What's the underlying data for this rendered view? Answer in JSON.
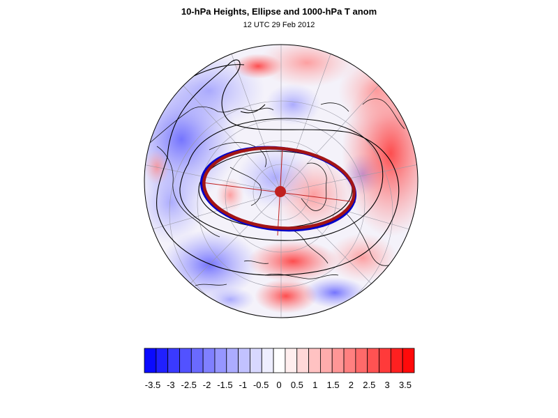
{
  "figure": {
    "title": "10-hPa Heights, Ellipse and 1000-hPa T anom",
    "subtitle": "12 UTC 29 Feb 2012"
  },
  "map": {
    "projection": "orthographic-north-polar",
    "shading_field": "1000-hPa temperature anomaly",
    "contour_field": "10-hPa geopotential height",
    "ellipse_colors": {
      "fitted": "#a31515",
      "vortex_edge": "#0000c8"
    },
    "center_marker_color": "#c02020"
  },
  "colorbar": {
    "labels": [
      "-3.5",
      "-3",
      "-2.5",
      "-2",
      "-1.5",
      "-1",
      "-0.5",
      "0",
      "0.5",
      "1",
      "1.5",
      "2",
      "2.5",
      "3",
      "3.5"
    ],
    "colors": [
      "#0a0aff",
      "#2020ff",
      "#3a3aff",
      "#5252ff",
      "#6a6aff",
      "#8080ff",
      "#9696ff",
      "#acacff",
      "#c2c2ff",
      "#d8d8ff",
      "#eeeeff",
      "#ffffff",
      "#ffeeee",
      "#ffd8d8",
      "#ffc2c2",
      "#ffacac",
      "#ff9696",
      "#ff8080",
      "#ff6a6a",
      "#ff5252",
      "#ff3a3a",
      "#ff2020",
      "#ff0a0a"
    ]
  }
}
